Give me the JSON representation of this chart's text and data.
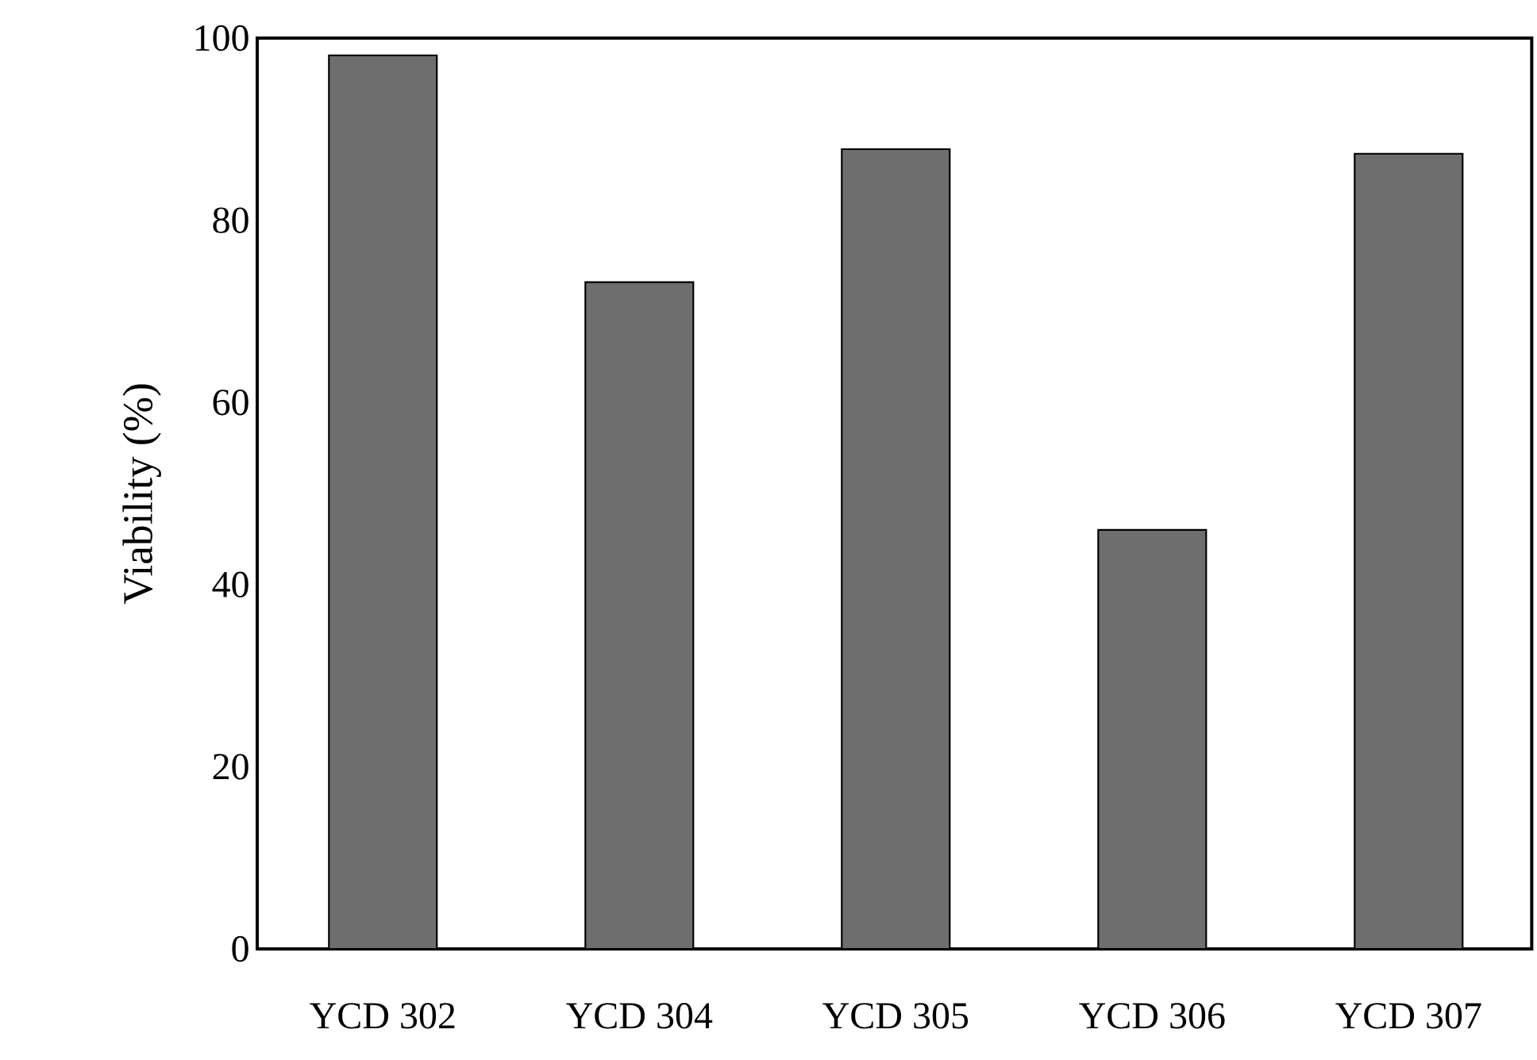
{
  "chart_data": {
    "type": "bar",
    "ylabel": "Viability (%)",
    "categories": [
      "YCD 302",
      "YCD 304",
      "YCD 305",
      "YCD 306",
      "YCD 307"
    ],
    "values": [
      98.1,
      73.2,
      87.8,
      46.0,
      87.3
    ],
    "color": "#6e6e6e",
    "ylim": [
      0,
      100
    ],
    "yticks": [
      0,
      20,
      40,
      60,
      80,
      100
    ]
  }
}
